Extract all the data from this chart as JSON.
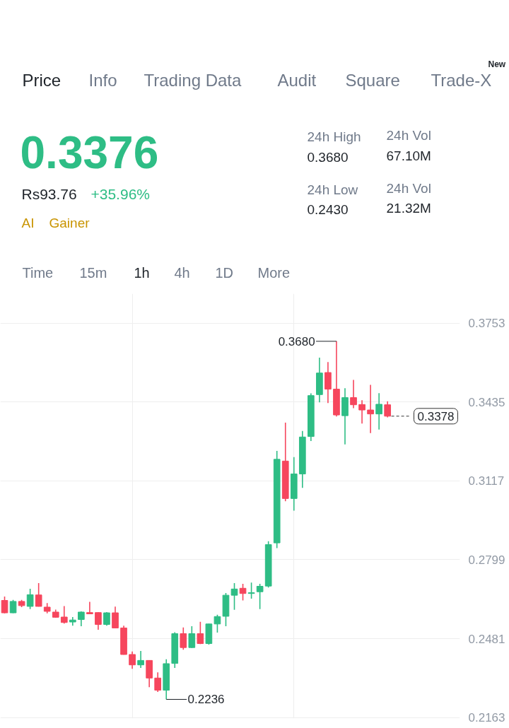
{
  "chart_data": {
    "type": "candlestick",
    "categories": [
      null,
      null,
      null,
      null,
      null,
      null,
      null,
      null,
      null,
      null,
      null,
      null,
      null,
      null,
      null,
      null,
      null,
      null,
      null,
      null,
      null,
      null,
      null,
      null,
      null,
      null,
      null,
      null,
      null,
      null,
      null,
      null,
      null,
      null,
      null,
      null,
      null,
      null,
      null,
      null,
      null,
      null,
      null,
      null,
      null,
      null,
      null,
      null,
      null,
      null,
      null,
      null,
      null,
      null
    ],
    "ohlc": [
      [
        0.2635,
        0.2651,
        0.2583,
        0.2585
      ],
      [
        0.2585,
        0.2637,
        0.2584,
        0.2631
      ],
      [
        0.2631,
        0.2637,
        0.2608,
        0.2614
      ],
      [
        0.2611,
        0.2682,
        0.26,
        0.2658
      ],
      [
        0.2657,
        0.2705,
        0.261,
        0.2611
      ],
      [
        0.2608,
        0.2624,
        0.2583,
        0.2591
      ],
      [
        0.2588,
        0.2598,
        0.2565,
        0.2567
      ],
      [
        0.2568,
        0.2612,
        0.2542,
        0.2546
      ],
      [
        0.2548,
        0.2568,
        0.2533,
        0.2556
      ],
      [
        0.2558,
        0.2591,
        0.2531,
        0.2588
      ],
      [
        0.2586,
        0.2629,
        0.258,
        0.2581
      ],
      [
        0.2586,
        0.2587,
        0.2517,
        0.2538
      ],
      [
        0.2538,
        0.2588,
        0.2533,
        0.2585
      ],
      [
        0.2585,
        0.261,
        0.2523,
        0.2524
      ],
      [
        0.2524,
        0.2533,
        0.2416,
        0.2417
      ],
      [
        0.2417,
        0.2429,
        0.2359,
        0.2375
      ],
      [
        0.2375,
        0.2431,
        0.2363,
        0.2393
      ],
      [
        0.2393,
        0.2394,
        0.2285,
        0.2322
      ],
      [
        0.2322,
        0.2345,
        0.2266,
        0.2273
      ],
      [
        0.2273,
        0.2398,
        0.2236,
        0.238
      ],
      [
        0.2381,
        0.2507,
        0.2363,
        0.2501
      ],
      [
        0.2501,
        0.2526,
        0.2436,
        0.2445
      ],
      [
        0.2445,
        0.2531,
        0.2443,
        0.2501
      ],
      [
        0.2501,
        0.2549,
        0.2459,
        0.2461
      ],
      [
        0.2461,
        0.2541,
        0.2457,
        0.254
      ],
      [
        0.254,
        0.2577,
        0.2505,
        0.257
      ],
      [
        0.2571,
        0.2665,
        0.2531,
        0.2656
      ],
      [
        0.2656,
        0.2705,
        0.2597,
        0.2681
      ],
      [
        0.2684,
        0.2702,
        0.2635,
        0.2663
      ],
      [
        0.2663,
        0.2707,
        0.2642,
        0.2666
      ],
      [
        0.267,
        0.2702,
        0.26,
        0.2692
      ],
      [
        0.2693,
        0.2874,
        0.2687,
        0.286
      ],
      [
        0.2867,
        0.3238,
        0.2846,
        0.3204
      ],
      [
        0.3197,
        0.3352,
        0.3035,
        0.3046
      ],
      [
        0.3046,
        0.3213,
        0.2997,
        0.3145
      ],
      [
        0.3145,
        0.3318,
        0.3089,
        0.3294
      ],
      [
        0.3296,
        0.347,
        0.3278,
        0.3461
      ],
      [
        0.3465,
        0.3614,
        0.3434,
        0.3552
      ],
      [
        0.3554,
        0.3596,
        0.3431,
        0.3487
      ],
      [
        0.3487,
        0.368,
        0.3377,
        0.3383
      ],
      [
        0.338,
        0.3491,
        0.3264,
        0.3453
      ],
      [
        0.3453,
        0.3524,
        0.341,
        0.3424
      ],
      [
        0.3425,
        0.3442,
        0.3348,
        0.3403
      ],
      [
        0.3403,
        0.3504,
        0.331,
        0.3387
      ],
      [
        0.3387,
        0.3471,
        0.3324,
        0.3426
      ],
      [
        0.3424,
        0.3438,
        0.3373,
        0.3378
      ],
      null,
      null,
      null,
      null,
      null,
      null,
      null,
      null
    ],
    "colors": [
      "#f6465d",
      "#2ebd85",
      "#f6465d",
      "#2ebd85",
      "#f6465d",
      "#f6465d",
      "#f6465d",
      "#f6465d",
      "#2ebd85",
      "#2ebd85",
      "#f6465d",
      "#f6465d",
      "#2ebd85",
      "#f6465d",
      "#f6465d",
      "#f6465d",
      "#2ebd85",
      "#f6465d",
      "#f6465d",
      "#2ebd85",
      "#2ebd85",
      "#f6465d",
      "#2ebd85",
      "#f6465d",
      "#2ebd85",
      "#2ebd85",
      "#2ebd85",
      "#2ebd85",
      "#f6465d",
      "#2ebd85",
      "#2ebd85",
      "#2ebd85",
      "#2ebd85",
      "#f6465d",
      "#2ebd85",
      "#2ebd85",
      "#2ebd85",
      "#2ebd85",
      "#f6465d",
      "#f6465d",
      "#2ebd85",
      "#f6465d",
      "#f6465d",
      "#f6465d",
      "#2ebd85",
      "#f6465d",
      null,
      null,
      null,
      null,
      null,
      null,
      null,
      null
    ],
    "ylim": [
      0.2159,
      0.3872
    ],
    "yticks": [
      0.2163,
      0.2481,
      0.2799,
      0.3117,
      0.3435,
      0.3753
    ],
    "tick_labels": "y",
    "grid": true,
    "ref_lines": [
      {
        "axis": "y",
        "value": 0.3378,
        "label": "0.3378",
        "color": "#333333",
        "line_style": "dashed"
      }
    ],
    "annotations": [
      "Price",
      "Info",
      "Trading Data",
      "Audit",
      "Square",
      "Trade-X",
      "New",
      "0.3376",
      "Rs93.76",
      "+35.96%",
      "AI",
      "Gainer",
      "24h High",
      "0.3680",
      "24h Low",
      "0.2430",
      "24h Vol",
      "67.10M",
      "24h Vol",
      "21.32M",
      "Time",
      "15m",
      "1h",
      "4h",
      "1D",
      "More",
      "0.3680",
      "0.2236"
    ]
  }
}
